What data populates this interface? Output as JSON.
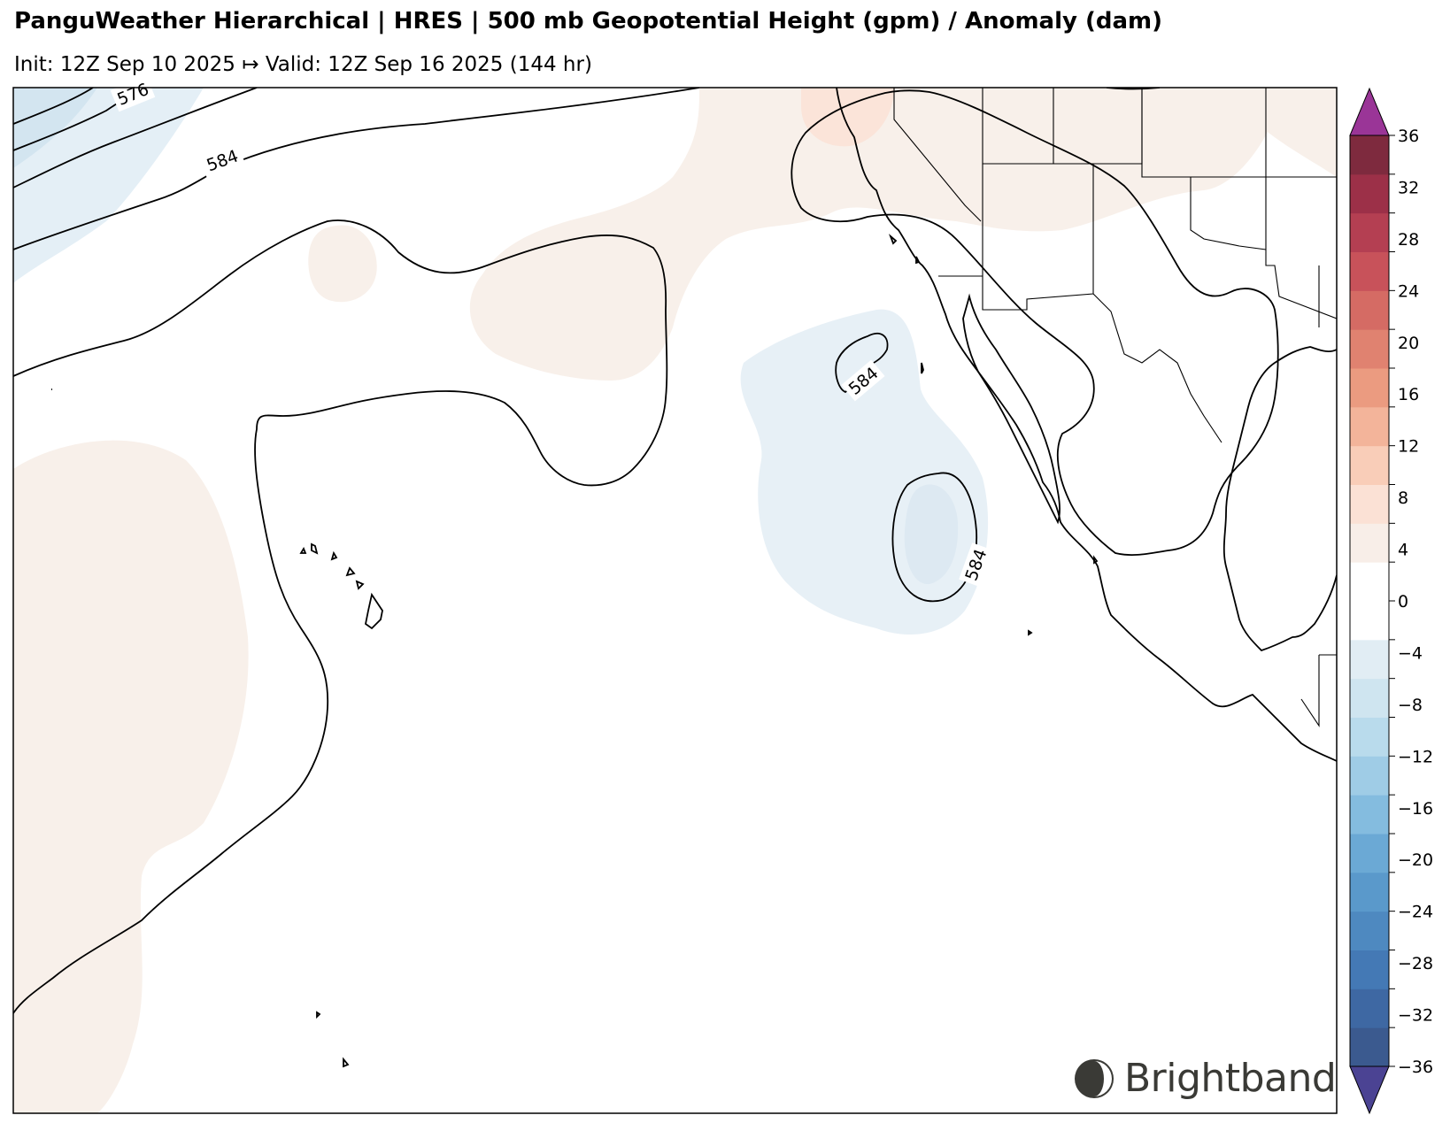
{
  "header": {
    "title": "PanguWeather Hierarchical | HRES | 500 mb Geopotential Height (gpm) / Anomaly (dam)",
    "subtitle": "Init: 12Z Sep 10 2025 ↦ Valid: 12Z Sep 16 2025 (144 hr)"
  },
  "map": {
    "contour_labels": [
      "576",
      "584",
      "584",
      "584"
    ]
  },
  "colorbar": {
    "tick_labels": [
      "36",
      "32",
      "28",
      "24",
      "20",
      "16",
      "12",
      "8",
      "4",
      "0",
      "−4",
      "−8",
      "−12",
      "−16",
      "−20",
      "−24",
      "−28",
      "−32",
      "−36"
    ],
    "colors": [
      "#3b5a8f",
      "#3e68a3",
      "#4479b5",
      "#4e89c0",
      "#5a99cb",
      "#6ba9d5",
      "#84bcdf",
      "#9fcce6",
      "#b9dbec",
      "#cfe5f0",
      "#e1edf4",
      "#ffffff",
      "#ffffff",
      "#f8eee8",
      "#fbe1d5",
      "#f9cdb8",
      "#f3b49a",
      "#eb9b80",
      "#e08270",
      "#d56b64",
      "#c8525a",
      "#b43f52",
      "#9c3048",
      "#7e2a3e"
    ],
    "extend_low_color": "#4b4393",
    "extend_high_color": "#9a3597"
  },
  "brand": {
    "name": "Brightband",
    "logo_icon": "brightband-logo-icon"
  }
}
